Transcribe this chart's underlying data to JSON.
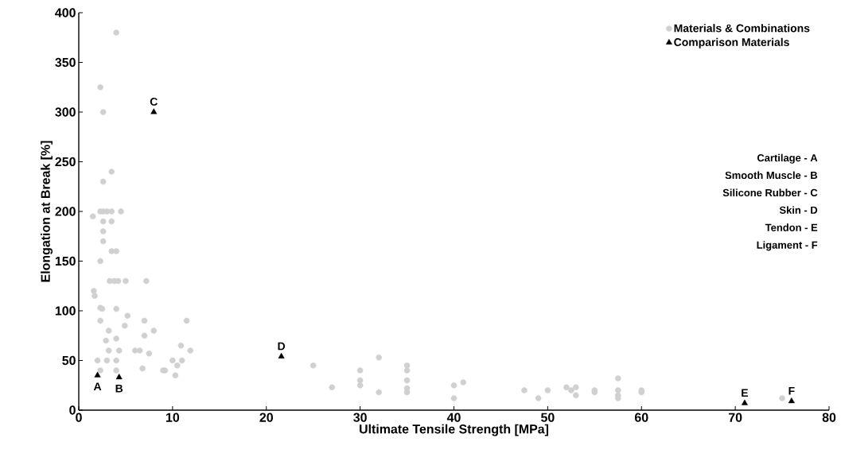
{
  "chart_data": {
    "type": "scatter",
    "xlabel": "Ultimate Tensile Strength [MPa]",
    "ylabel": "Elongation at Break [%]",
    "xlim": [
      0,
      80
    ],
    "ylim": [
      0,
      400
    ],
    "xticks": [
      0,
      10,
      20,
      30,
      40,
      50,
      60,
      70,
      80
    ],
    "yticks": [
      0,
      50,
      100,
      150,
      200,
      250,
      300,
      350,
      400
    ],
    "legend": "top right",
    "grid": false,
    "series": [
      {
        "name": "Materials & Combinations",
        "color": "#d0d0d0",
        "marker": "circle",
        "x": [
          4,
          2.3,
          2.6,
          3.5,
          2.6,
          1.5,
          2.3,
          2.6,
          3,
          3.5,
          4.5,
          2.6,
          3.5,
          2.6,
          2.6,
          3.5,
          4,
          2.3,
          3.3,
          3.8,
          4.2,
          5,
          7.2,
          1.6,
          1.7,
          2.3,
          2.5,
          4,
          4.9,
          5.2,
          7,
          11.5,
          2.3,
          3.2,
          8,
          2.9,
          4,
          7,
          3.2,
          4.3,
          6,
          6.5,
          7.5,
          11.9,
          2,
          3,
          4,
          6.8,
          9,
          9.2,
          10,
          10.5,
          11,
          10.9,
          10.3,
          2.3,
          4,
          25,
          27,
          30,
          30,
          30,
          32,
          32,
          35,
          35,
          35,
          35,
          35,
          40,
          40,
          41,
          47.5,
          49,
          50,
          52,
          52.5,
          53,
          53,
          55,
          55,
          57.5,
          57.5,
          57.5,
          57.5,
          60,
          60,
          75
        ],
        "values": [
          380,
          325,
          300,
          240,
          230,
          195,
          200,
          200,
          200,
          200,
          200,
          190,
          190,
          180,
          170,
          160,
          160,
          150,
          130,
          130,
          130,
          130,
          130,
          120,
          115,
          103,
          102,
          102,
          85,
          95,
          90,
          90,
          90,
          80,
          80,
          70,
          72,
          75,
          60,
          60,
          60,
          60,
          57,
          60,
          50,
          50,
          50,
          42,
          40,
          40,
          50,
          45,
          50,
          65,
          35,
          40,
          40,
          45,
          23,
          40,
          30,
          25,
          53,
          18,
          45,
          40,
          30,
          22,
          18,
          25,
          12,
          28,
          20,
          12,
          20,
          23,
          20,
          23,
          15,
          20,
          18,
          32,
          20,
          15,
          12,
          20,
          18,
          12
        ]
      },
      {
        "name": "Comparison Materials",
        "color": "#000000",
        "marker": "triangle",
        "x": [
          2,
          4.3,
          8,
          21.6,
          71,
          76
        ],
        "values": [
          35,
          33,
          300,
          54,
          7,
          9
        ]
      }
    ],
    "annotations": [
      {
        "text": "A",
        "x": 2,
        "y": 35
      },
      {
        "text": "B",
        "x": 4.3,
        "y": 33
      },
      {
        "text": "C",
        "x": 8,
        "y": 300
      },
      {
        "text": "D",
        "x": 21.6,
        "y": 54
      },
      {
        "text": "E",
        "x": 71,
        "y": 7
      },
      {
        "text": "F",
        "x": 76,
        "y": 9
      },
      "Cartilage - A",
      "Smooth Muscle - B",
      "Silicone Rubber - C",
      "Skin - D",
      "Tendon - E",
      "Ligament - F"
    ]
  }
}
